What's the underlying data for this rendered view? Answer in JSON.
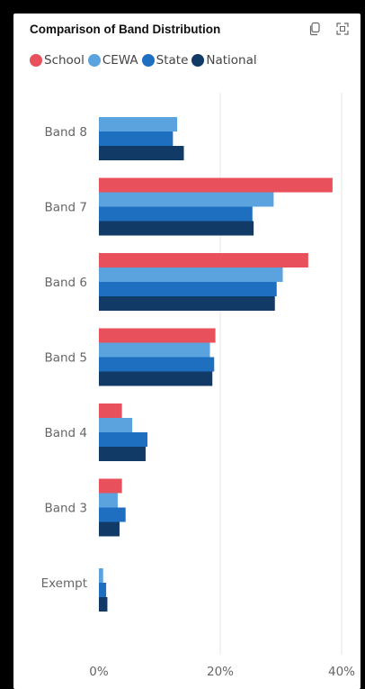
{
  "card": {
    "title": "Comparison of Band Distribution",
    "icons": [
      "copy-icon",
      "focus-mode-icon"
    ]
  },
  "chart_data": {
    "type": "bar",
    "orientation": "horizontal",
    "title": "Comparison of Band Distribution",
    "xlabel": "",
    "ylabel": "",
    "categories": [
      "Band 8",
      "Band 7",
      "Band 6",
      "Band 5",
      "Band 4",
      "Band 3",
      "Exempt"
    ],
    "series": [
      {
        "name": "School",
        "color": "#e8505b",
        "values": [
          0,
          38.5,
          34.5,
          19.2,
          3.8,
          3.8,
          0
        ]
      },
      {
        "name": "CEWA",
        "color": "#5ba3df",
        "values": [
          12.9,
          28.8,
          30.3,
          18.3,
          5.5,
          3.1,
          0.7
        ]
      },
      {
        "name": "State",
        "color": "#1f6fc1",
        "values": [
          12.2,
          25.3,
          29.3,
          19.0,
          8.0,
          4.4,
          1.2
        ]
      },
      {
        "name": "National",
        "color": "#123a66",
        "values": [
          14.0,
          25.5,
          29.0,
          18.7,
          7.7,
          3.4,
          1.4
        ]
      }
    ],
    "xlim": [
      0,
      40
    ],
    "xticks": [
      0,
      20,
      40
    ],
    "xtick_labels": [
      "0%",
      "20%",
      "40%"
    ],
    "grid": true,
    "legend_position": "top-left"
  }
}
